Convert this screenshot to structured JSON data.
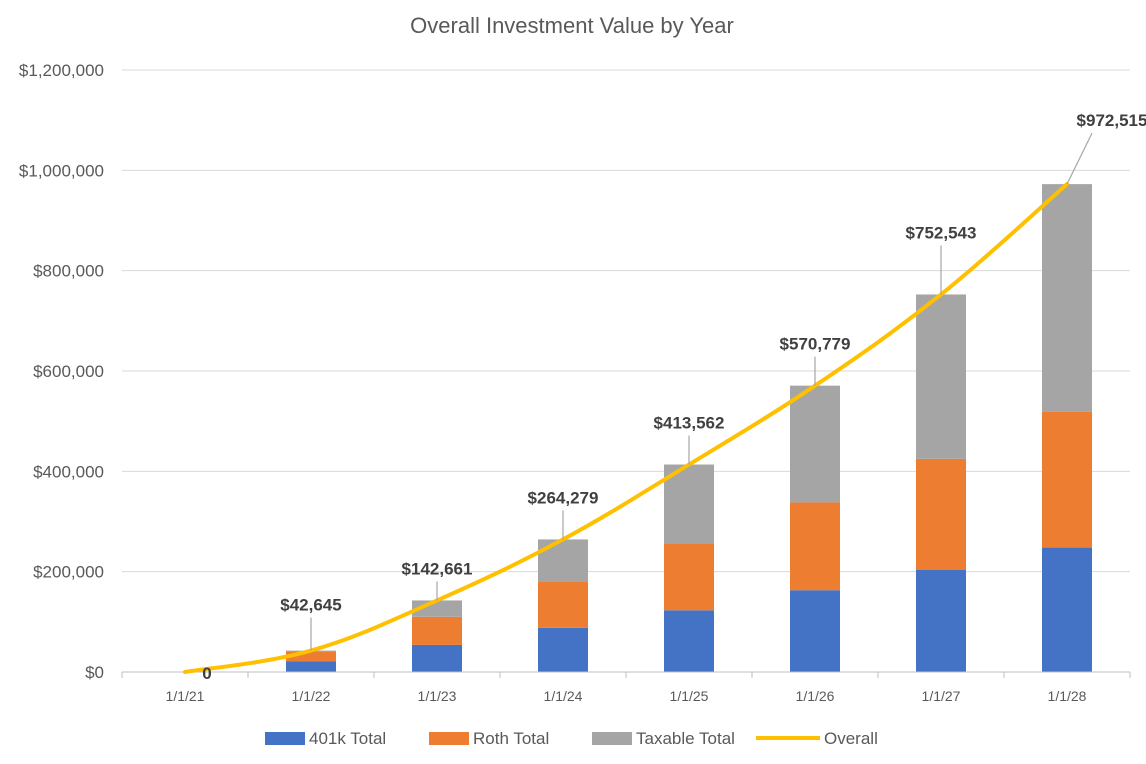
{
  "chart_data": {
    "type": "bar",
    "stacked": true,
    "title": "Overall Investment Value by Year",
    "categories": [
      "1/1/21",
      "1/1/22",
      "1/1/23",
      "1/1/24",
      "1/1/25",
      "1/1/26",
      "1/1/27",
      "1/1/28"
    ],
    "series": [
      {
        "name": "401k Total",
        "type": "bar",
        "color": "#4472C4",
        "values": [
          0,
          21000,
          54000,
          88000,
          123000,
          163000,
          204000,
          248000
        ]
      },
      {
        "name": "Roth Total",
        "type": "bar",
        "color": "#ED7D31",
        "values": [
          0,
          20000,
          56000,
          93000,
          133000,
          175000,
          221000,
          271000
        ]
      },
      {
        "name": "Taxable Total",
        "type": "bar",
        "color": "#A5A5A5",
        "values": [
          0,
          1645,
          32661,
          83279,
          157562,
          232779,
          327543,
          453515
        ]
      },
      {
        "name": "Overall",
        "type": "line",
        "color": "#FFC000",
        "values": [
          0,
          42645,
          142661,
          264279,
          413562,
          570779,
          752543,
          972515
        ]
      }
    ],
    "data_labels": [
      "0",
      "$42,645",
      "$142,661",
      "$264,279",
      "$413,562",
      "$570,779",
      "$752,543",
      "$972,515"
    ],
    "ylim": [
      0,
      1200000
    ],
    "yticks": [
      0,
      200000,
      400000,
      600000,
      800000,
      1000000,
      1200000
    ],
    "ytick_labels": [
      "$0",
      "$200,000",
      "$400,000",
      "$600,000",
      "$800,000",
      "$1,000,000",
      "$1,200,000"
    ],
    "grid": true,
    "legend_position": "bottom"
  }
}
